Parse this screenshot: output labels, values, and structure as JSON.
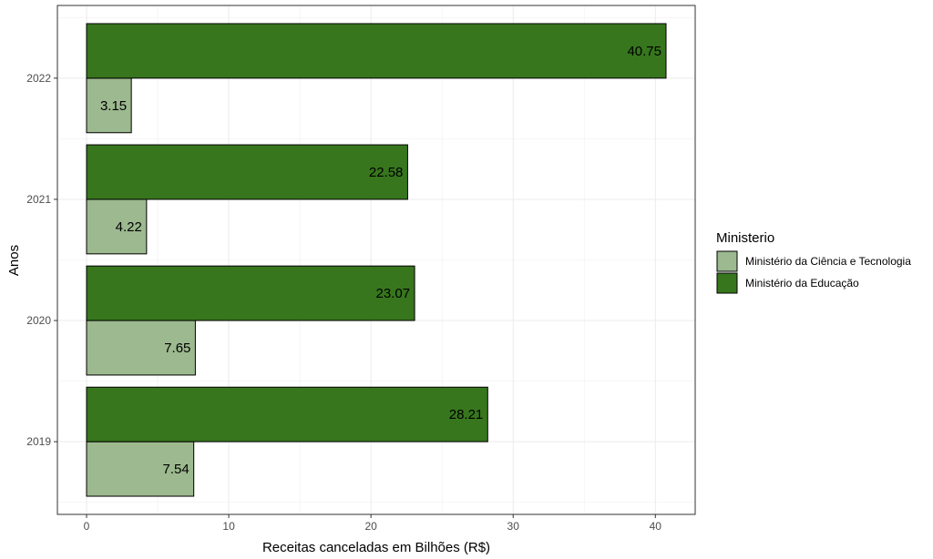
{
  "chart_data": {
    "type": "bar",
    "orientation": "horizontal",
    "categories": [
      "2019",
      "2020",
      "2021",
      "2022"
    ],
    "series": [
      {
        "name": "Ministério da Ciência e Tecnologia",
        "color": "#9cb98f",
        "values": [
          7.54,
          7.65,
          4.22,
          3.15
        ]
      },
      {
        "name": "Ministério da Educação",
        "color": "#37761d",
        "values": [
          28.21,
          23.07,
          22.58,
          40.75
        ]
      }
    ],
    "xlabel": "Receitas canceladas em Bilhões (R$)",
    "ylabel": "Anos",
    "x_ticks": [
      0,
      10,
      20,
      30,
      40
    ],
    "xlim": [
      -2.05,
      42.8
    ],
    "legend_title": "Ministerio",
    "legend_position": "right",
    "grid": true
  }
}
